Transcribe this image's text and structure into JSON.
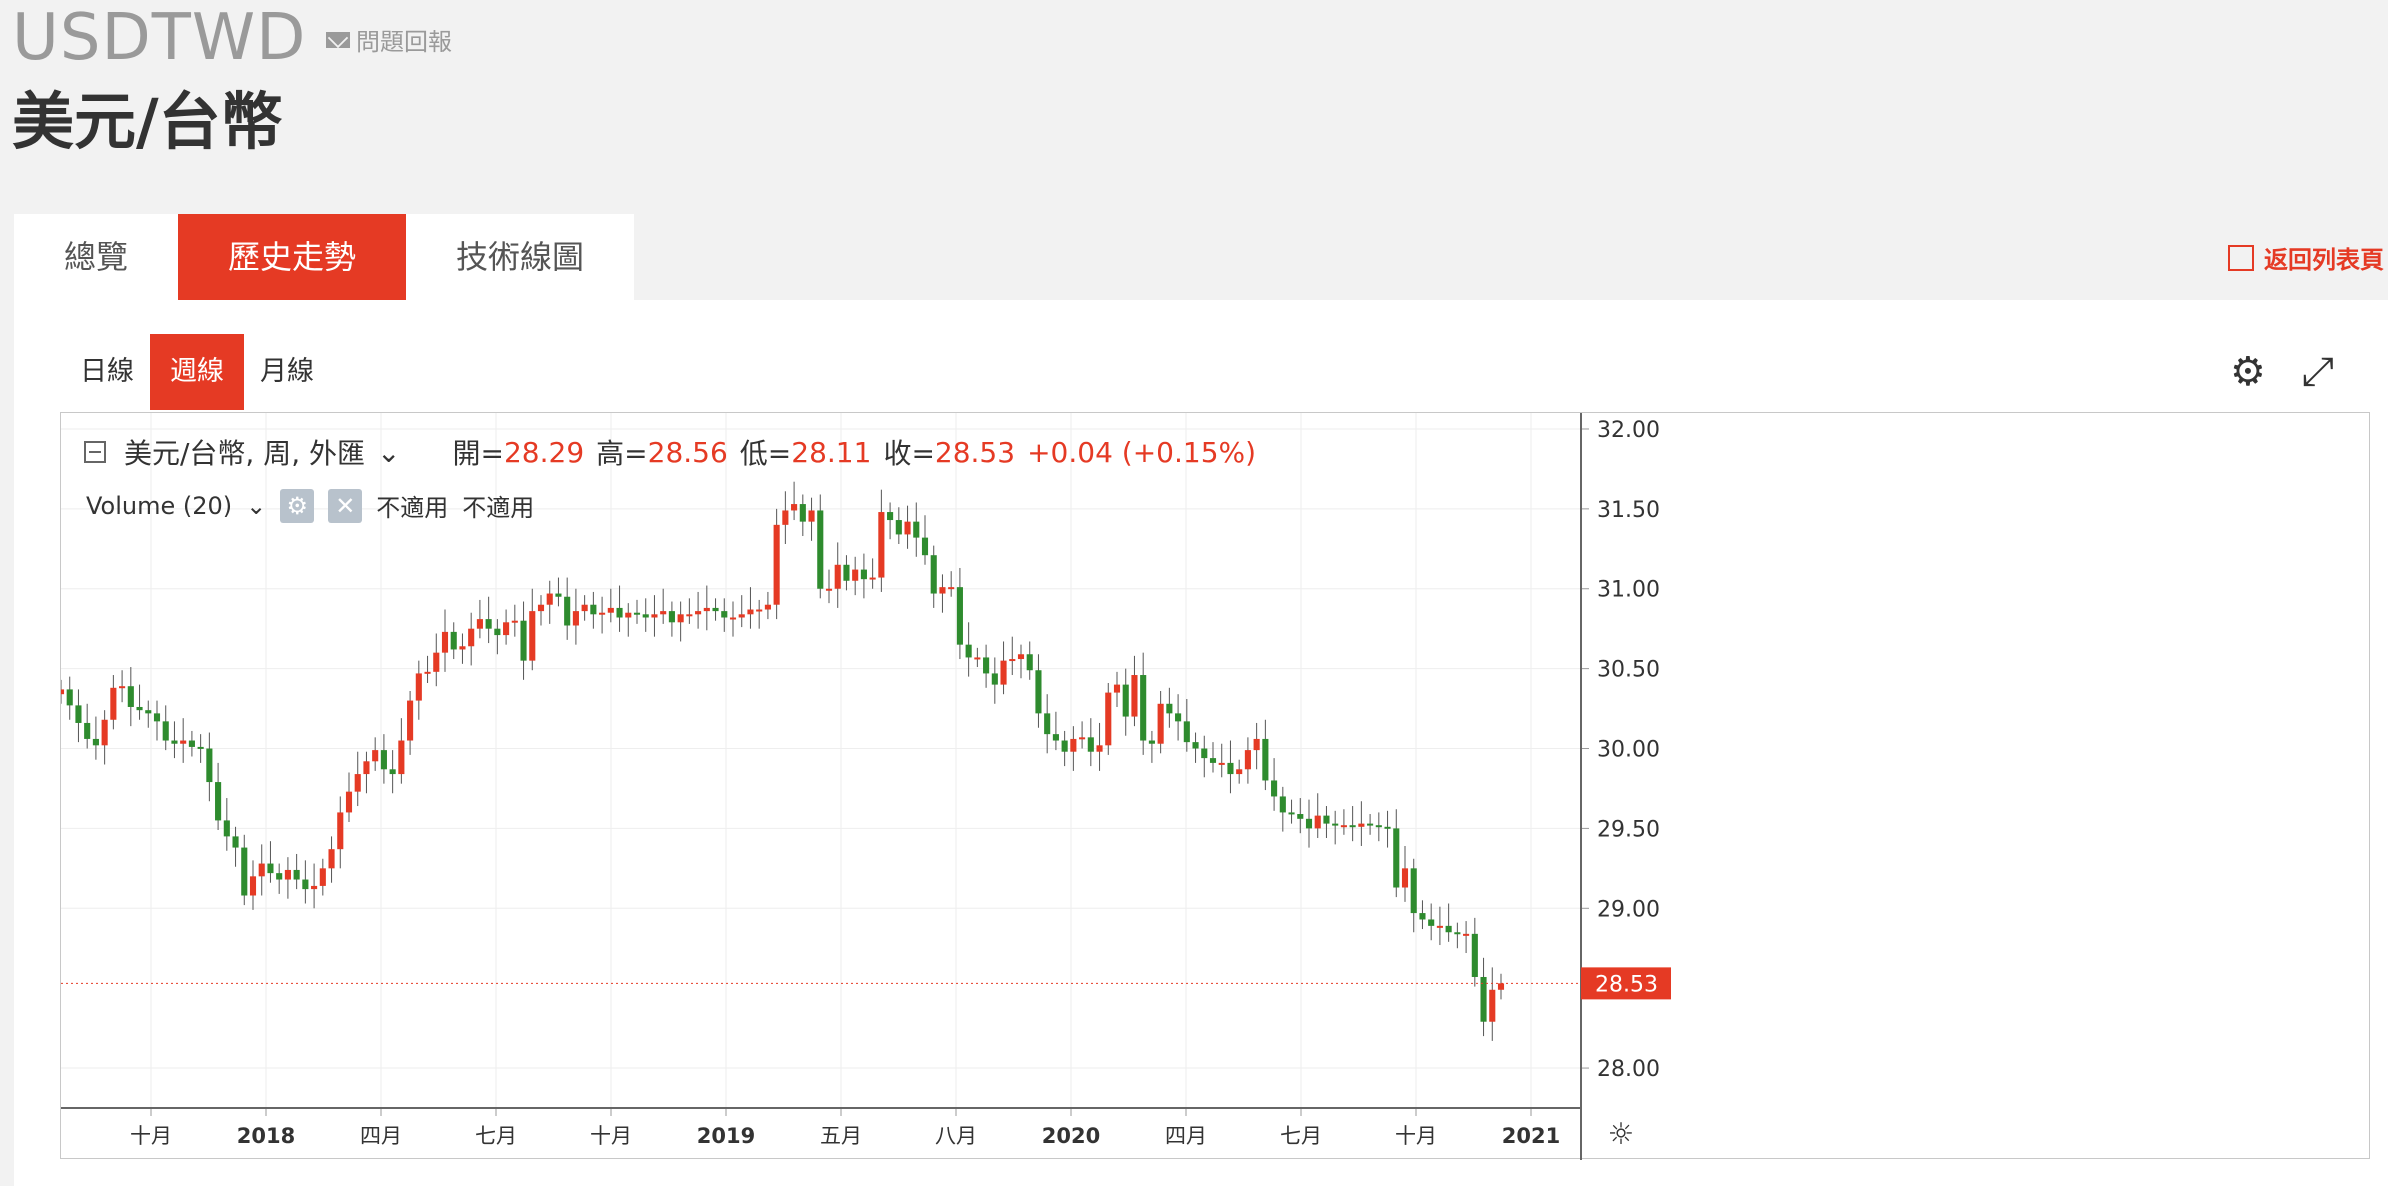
{
  "header": {
    "symbol": "USDTWD",
    "feedback_label": "問題回報",
    "name": "美元/台幣"
  },
  "tabs": [
    {
      "label": "總覽"
    },
    {
      "label": "歷史走勢"
    },
    {
      "label": "技術線圖"
    }
  ],
  "active_tab_index": 1,
  "return_link": "返回列表頁",
  "period_tabs": [
    {
      "label": "日線"
    },
    {
      "label": "週線"
    },
    {
      "label": "月線"
    }
  ],
  "active_period_index": 1,
  "icons": {
    "settings": "gear-icon",
    "fullscreen": "expand-icon",
    "axis_settings": "sun-gear-icon"
  },
  "legend": {
    "series_title": "美元/台幣, 周, 外匯",
    "open_label": "開=",
    "open": "28.29",
    "high_label": "高=",
    "high": "28.56",
    "low_label": "低=",
    "low": "28.11",
    "close_label": "收=",
    "close": "28.53",
    "change": "+0.04 (+0.15%)",
    "volume_label": "Volume (20)",
    "na1": "不適用",
    "na2": "不適用"
  },
  "colors": {
    "up": "#e53a24",
    "down": "#2e8b2e",
    "accent": "#e53a24"
  },
  "chart_data": {
    "type": "candlestick",
    "y_ticks": [
      "32.00",
      "31.50",
      "31.00",
      "30.50",
      "30.00",
      "29.50",
      "29.00",
      "28.00"
    ],
    "ylim": [
      27.75,
      32.1
    ],
    "last_price_label": "28.53",
    "x_ticks": [
      "十月",
      "2018",
      "四月",
      "七月",
      "十月",
      "2019",
      "五月",
      "八月",
      "2020",
      "四月",
      "七月",
      "十月",
      "2021"
    ],
    "close": [
      30.37,
      30.27,
      30.16,
      30.06,
      30.02,
      30.18,
      30.38,
      30.39,
      30.26,
      30.24,
      30.22,
      30.17,
      30.05,
      30.03,
      30.05,
      30.01,
      30.0,
      29.79,
      29.55,
      29.45,
      29.38,
      29.08,
      29.2,
      29.28,
      29.22,
      29.18,
      29.24,
      29.18,
      29.12,
      29.14,
      29.25,
      29.37,
      29.6,
      29.73,
      29.84,
      29.92,
      29.99,
      29.87,
      29.84,
      30.05,
      30.3,
      30.47,
      30.48,
      30.6,
      30.73,
      30.62,
      30.64,
      30.75,
      30.81,
      30.75,
      30.71,
      30.79,
      30.8,
      30.55,
      30.86,
      30.9,
      30.97,
      30.95,
      30.77,
      30.86,
      30.9,
      30.84,
      30.85,
      30.88,
      30.82,
      30.85,
      30.84,
      30.82,
      30.84,
      30.86,
      30.79,
      30.84,
      30.84,
      30.86,
      30.88,
      30.86,
      30.82,
      30.82,
      30.84,
      30.87,
      30.87,
      30.9,
      31.4,
      31.49,
      31.53,
      31.42,
      31.49,
      31.0,
      31.0,
      31.15,
      31.05,
      31.12,
      31.06,
      31.07,
      31.48,
      31.43,
      31.34,
      31.42,
      31.32,
      31.21,
      30.97,
      31.01,
      31.01,
      30.65,
      30.57,
      30.57,
      30.47,
      30.4,
      30.55,
      30.56,
      30.59,
      30.49,
      30.22,
      30.09,
      30.05,
      29.98,
      30.06,
      30.07,
      29.98,
      30.02,
      30.35,
      30.4,
      30.2,
      30.46,
      30.05,
      30.03,
      30.28,
      30.22,
      30.17,
      30.04,
      30.0,
      29.94,
      29.91,
      29.91,
      29.84,
      29.87,
      29.99,
      30.06,
      29.8,
      29.7,
      29.6,
      29.59,
      29.56,
      29.5,
      29.58,
      29.53,
      29.52,
      29.52,
      29.51,
      29.53,
      29.52,
      29.51,
      29.5,
      29.13,
      29.25,
      28.97,
      28.93,
      28.89,
      28.89,
      28.85,
      28.84,
      28.84,
      28.57,
      28.29,
      28.49,
      28.53
    ],
    "series_name": "美元/台幣"
  }
}
